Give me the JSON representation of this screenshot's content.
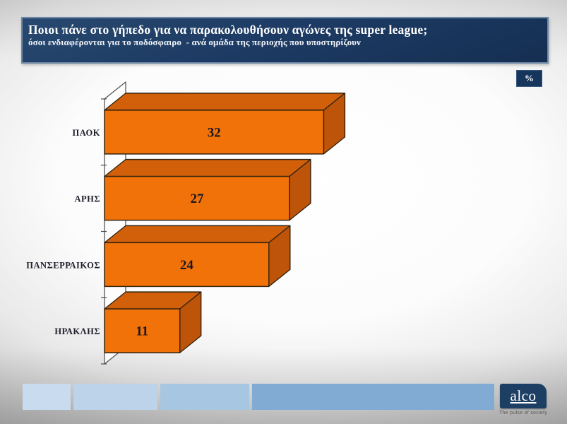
{
  "header": {
    "title": "Ποιοι πάνε στο γήπεδο για να παρακολουθήσουν αγώνες της super league;",
    "subtitle": "όσοι ενδιαφέρονται για το ποδόσφαιρο  - ανά ομάδα της περιοχής που υποστηρίζουν",
    "unit_badge": "%"
  },
  "chart_data": {
    "type": "bar",
    "orientation": "horizontal",
    "style": "3d-prism",
    "title": "Ποιοι πάνε στο γήπεδο για να παρακολουθήσουν αγώνες της super league;",
    "subtitle": "όσοι ενδιαφέρονται για το ποδόσφαιρο - ανά ομάδα της περιοχής που υποστηρίζουν",
    "categories": [
      "ΠΑΟΚ",
      "ΑΡΗΣ",
      "ΠΑΝΣΕΡΡΑΙΚΟΣ",
      "ΗΡΑΚΛΗΣ"
    ],
    "values": [
      32,
      27,
      24,
      11
    ],
    "unit": "%",
    "xlim": [
      0,
      35
    ],
    "data_labels": true,
    "grid": false,
    "legend": false,
    "bar_color_front": "#F2720A",
    "bar_color_top": "#D2600B",
    "bar_color_side": "#BE5409",
    "outline_color": "#33230f",
    "value_label_color": "#17171f",
    "category_label_color": "#20202c"
  },
  "footer": {
    "decor_block_colors": [
      "#c9dbee",
      "#bdd3ea",
      "#a6c6e2",
      "#82abd4"
    ],
    "logo_text": "alco",
    "logo_tagline": "The pulse of society"
  },
  "colors": {
    "title_bg": "#1d3b64",
    "title_border": "#6d87a6",
    "badge_bg": "#16355c",
    "logo_bg": "#1d3f63",
    "axis_wall_stroke": "#4d4d4d"
  }
}
